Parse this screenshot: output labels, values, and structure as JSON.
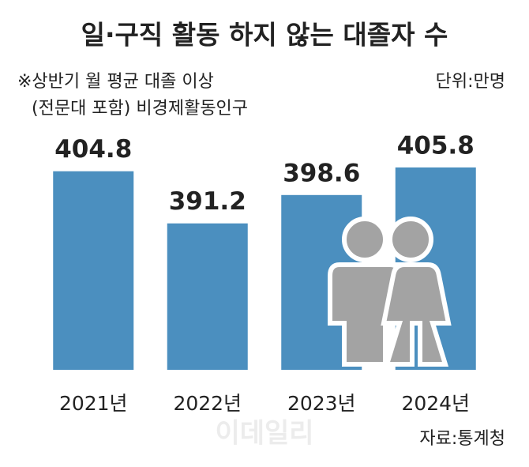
{
  "chart_data": {
    "type": "bar",
    "title": "일·구직 활동 하지 않는 대졸자 수",
    "subtitle": [
      "※상반기 월 평균 대졸 이상",
      "(전문대 포함) 비경제활동인구"
    ],
    "unit": "단위:만명",
    "source": "자료:통계청",
    "watermark": "이데일리",
    "categories": [
      "2021년",
      "2022년",
      "2023년",
      "2024년"
    ],
    "values": [
      404.8,
      391.2,
      398.6,
      405.8
    ],
    "color": "#4b8fbf",
    "ylim": [
      353,
      420
    ]
  }
}
